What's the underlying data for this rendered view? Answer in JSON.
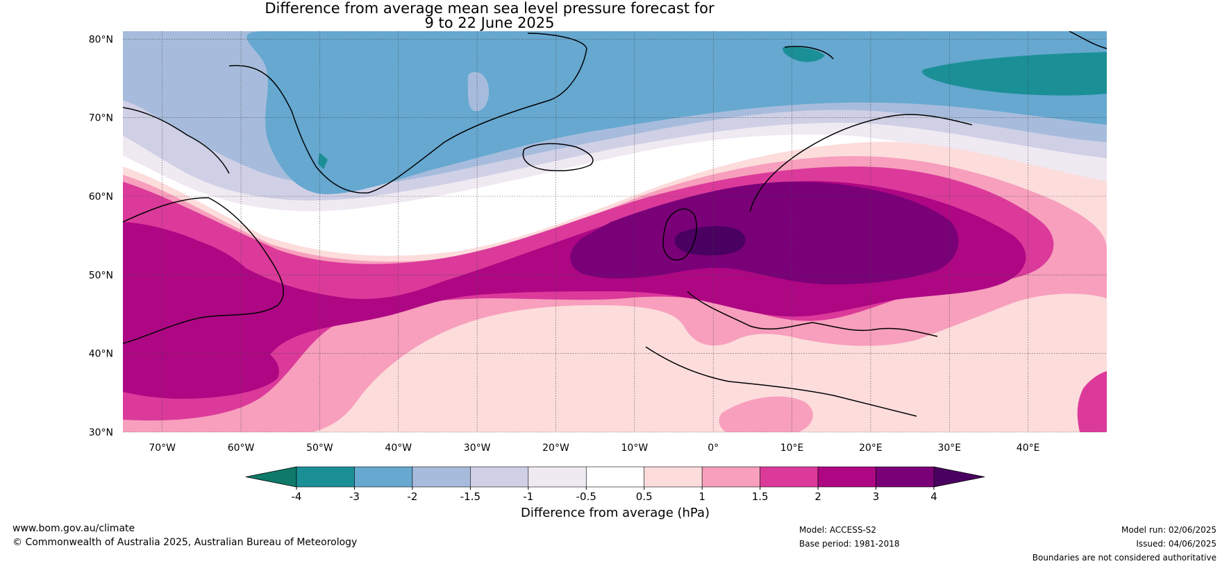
{
  "title": {
    "line1": "Difference from average mean sea level pressure forecast for",
    "line2": "9 to 22 June 2025"
  },
  "map": {
    "projection": "equirectangular",
    "lon_range": [
      -75,
      50
    ],
    "lat_range": [
      30,
      81
    ],
    "lat_ticks": [
      {
        "value": 80,
        "label": "80°N"
      },
      {
        "value": 70,
        "label": "70°N"
      },
      {
        "value": 60,
        "label": "60°N"
      },
      {
        "value": 50,
        "label": "50°N"
      },
      {
        "value": 40,
        "label": "40°N"
      },
      {
        "value": 30,
        "label": "30°N"
      }
    ],
    "lon_ticks": [
      {
        "value": -70,
        "label": "70°W"
      },
      {
        "value": -60,
        "label": "60°W"
      },
      {
        "value": -50,
        "label": "50°W"
      },
      {
        "value": -40,
        "label": "40°W"
      },
      {
        "value": -30,
        "label": "30°W"
      },
      {
        "value": -20,
        "label": "20°W"
      },
      {
        "value": -10,
        "label": "10°W"
      },
      {
        "value": 0,
        "label": "0°"
      },
      {
        "value": 10,
        "label": "10°E"
      },
      {
        "value": 20,
        "label": "20°E"
      },
      {
        "value": 30,
        "label": "30°E"
      },
      {
        "value": 40,
        "label": "40°E"
      }
    ],
    "gridlines": true
  },
  "colorbar": {
    "label": "Difference from average (hPa)",
    "extend": "both",
    "under_color": "#0f7a6a",
    "over_color": "#4a0060",
    "bins": [
      {
        "from": -4,
        "to": -3,
        "color": "#1b8f96"
      },
      {
        "from": -3,
        "to": -2,
        "color": "#66a8d0"
      },
      {
        "from": -2,
        "to": -1.5,
        "color": "#a7bcdc"
      },
      {
        "from": -1.5,
        "to": -1,
        "color": "#cfd0e6"
      },
      {
        "from": -1,
        "to": -0.5,
        "color": "#efe9f2"
      },
      {
        "from": -0.5,
        "to": 0.5,
        "color": "#ffffff"
      },
      {
        "from": 0.5,
        "to": 1,
        "color": "#fddcdc"
      },
      {
        "from": 1,
        "to": 1.5,
        "color": "#f79fbd"
      },
      {
        "from": 1.5,
        "to": 2,
        "color": "#db3a9a"
      },
      {
        "from": 2,
        "to": 3,
        "color": "#ae0784"
      },
      {
        "from": 3,
        "to": 4,
        "color": "#7a0078"
      }
    ],
    "tick_labels": [
      "-4",
      "-3",
      "-2",
      "-1.5",
      "-1",
      "-0.5",
      "0.5",
      "1",
      "1.5",
      "2",
      "3",
      "4"
    ]
  },
  "footer": {
    "website": "www.bom.gov.au/climate",
    "copyright": "© Commonwealth of Australia 2025, Australian Bureau of Meteorology",
    "model": "Model: ACCESS-S2",
    "base_period": "Base period: 1981-2018",
    "model_run": "Model run: 02/06/2025",
    "issued": "Issued: 04/06/2025",
    "disclaimer": "Boundaries are not considered authoritative"
  }
}
